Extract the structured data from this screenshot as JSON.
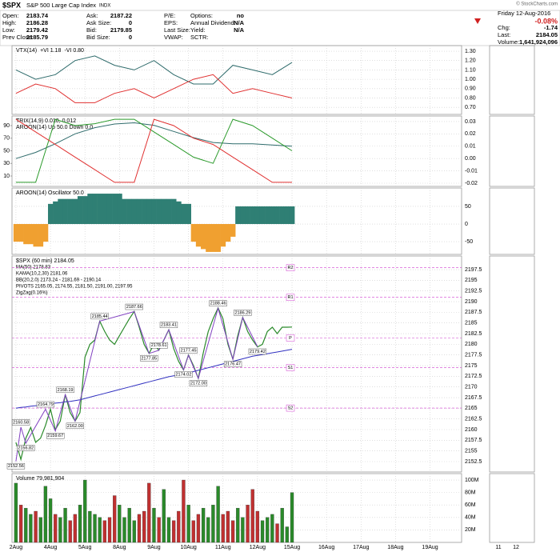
{
  "header": {
    "symbol": "$SPX",
    "name": "S&P 500 Large Cap Index",
    "exchange": "INDX",
    "credit": "© StockCharts.com",
    "quote": [
      [
        [
          "Open:",
          "2183.74"
        ],
        [
          "High:",
          "2186.28"
        ],
        [
          "Low:",
          "2179.42"
        ],
        [
          "Prev Close:",
          "2185.79"
        ]
      ],
      [
        [
          "Ask:",
          "2187.22"
        ],
        [
          "Ask Size:",
          "0"
        ],
        [
          "Bid:",
          "2179.85"
        ],
        [
          "Bid Size:",
          "0"
        ]
      ],
      [
        [
          "P/E:",
          ""
        ],
        [
          "EPS:",
          ""
        ],
        [
          "Last Size:",
          ""
        ],
        [
          "VWAP:",
          ""
        ]
      ],
      [
        [
          "Options:",
          "no"
        ],
        [
          "Annual Dividend:",
          "N/A"
        ],
        [
          "Yield:",
          "N/A"
        ],
        [
          "SCTR:",
          ""
        ]
      ]
    ],
    "date": "Friday 12-Aug-2016",
    "change_pct": "-0.08%",
    "summary": [
      [
        "Chg:",
        "-1.74"
      ],
      [
        "Last:",
        "2184.05"
      ],
      [
        "Volume:",
        "1,641,924,096"
      ]
    ]
  },
  "mini_xticks": [
    "11",
    "12"
  ],
  "chart_data": [
    {
      "type": "line",
      "title": "VTX(14)",
      "ylim": [
        0.625,
        1.36
      ],
      "yticks": [
        {
          "value": 0.7,
          "label": "0.70"
        },
        {
          "value": 0.8,
          "label": "0.80"
        },
        {
          "value": 0.9,
          "label": "0.90"
        },
        {
          "value": 1.0,
          "label": "1.00"
        },
        {
          "value": 1.1,
          "label": "1.10"
        },
        {
          "value": 1.2,
          "label": "1.20"
        },
        {
          "value": 1.3,
          "label": "1.30"
        }
      ],
      "series": [
        {
          "name": "+VI 1.18",
          "color": "#2e6b6b",
          "x": [
            0,
            4,
            8,
            12,
            16,
            20,
            24,
            28,
            32,
            36,
            40,
            44,
            48,
            52,
            56
          ],
          "values": [
            1.1,
            1.0,
            1.05,
            1.2,
            1.25,
            1.15,
            1.1,
            1.2,
            1.05,
            0.95,
            0.95,
            1.15,
            1.1,
            1.05,
            1.18
          ]
        },
        {
          "name": "-VI 0.80",
          "color": "#e03030",
          "x": [
            0,
            4,
            8,
            12,
            16,
            20,
            24,
            28,
            32,
            36,
            40,
            44,
            48,
            52,
            56
          ],
          "values": [
            0.85,
            0.95,
            0.9,
            0.75,
            0.75,
            0.85,
            0.9,
            0.8,
            0.9,
            1.0,
            1.05,
            0.85,
            0.9,
            0.85,
            0.8
          ]
        }
      ]
    },
    {
      "type": "line",
      "title": "TRIX(14,9) 0.010, 0.012",
      "title2": "AROON(14) Up 50.0 Down 0.0",
      "ylim": [
        -6.5,
        105.2
      ],
      "yticks": [
        10,
        30,
        50,
        70,
        90
      ],
      "y2lim": [
        -0.0226,
        0.0345
      ],
      "y2ticks": [
        {
          "value": -0.02,
          "label": "-0.02"
        },
        {
          "value": -0.01,
          "label": "-0.01"
        },
        {
          "value": 0,
          "label": "0.00"
        },
        {
          "value": 0.01,
          "label": "0.01"
        },
        {
          "value": 0.02,
          "label": "0.02"
        },
        {
          "value": 0.03,
          "label": "0.03"
        }
      ],
      "series": [
        {
          "color": "#2e6b6b",
          "axis": "y2",
          "x": [
            0,
            4,
            8,
            12,
            16,
            20,
            24,
            28,
            32,
            36,
            40,
            44,
            48,
            52,
            56
          ],
          "values": [
            0.0,
            0.005,
            0.012,
            0.02,
            0.025,
            0.028,
            0.029,
            0.027,
            0.022,
            0.017,
            0.013,
            0.012,
            0.012,
            0.011,
            0.01
          ]
        },
        {
          "color": "#2a9a2a",
          "x": [
            0,
            4,
            8,
            12,
            16,
            20,
            24,
            28,
            32,
            36,
            40,
            44,
            48,
            52,
            56
          ],
          "values": [
            0,
            0,
            100,
            90,
            93,
            100,
            100,
            80,
            60,
            40,
            30,
            100,
            90,
            70,
            50
          ]
        },
        {
          "color": "#e03030",
          "x": [
            0,
            4,
            8,
            12,
            16,
            20,
            24,
            28,
            32,
            36,
            40,
            44,
            48,
            52,
            56
          ],
          "values": [
            100,
            80,
            60,
            40,
            20,
            0,
            0,
            100,
            90,
            70,
            60,
            40,
            20,
            0,
            0
          ]
        }
      ]
    },
    {
      "type": "area",
      "title": "AROON(14) Oscillator 50.0",
      "ylim": [
        -86,
        102
      ],
      "yticks": [
        -50,
        0,
        50
      ],
      "pos_color": "#2f7f74",
      "neg_color": "#f0a030",
      "values": [
        -50,
        -50,
        -57,
        -57,
        -64,
        -64,
        -50,
        57,
        64,
        71,
        71,
        71,
        71,
        79,
        79,
        86,
        86,
        86,
        86,
        86,
        86,
        86,
        71,
        71,
        71,
        71,
        71,
        71,
        71,
        71,
        71,
        71,
        71,
        64,
        57,
        57,
        -50,
        -64,
        -71,
        -79,
        -79,
        -79,
        -64,
        -50,
        -36,
        50,
        50,
        50,
        50,
        50,
        50,
        50,
        50,
        50,
        50,
        50,
        50
      ]
    },
    {
      "type": "price",
      "title": "$SPX (60 min) 2184.05",
      "legend": [
        {
          "text": "MA(50) 2178.83",
          "color": "#3030c0"
        },
        {
          "text": "KAMA(10,2,30) 2181.06",
          "color": "#c03030"
        },
        {
          "text": "BB(20,2.0) 2173.24 - 2181.69 - 2190.14",
          "color": "#888888"
        },
        {
          "text": "PIVOTS 2165.05, 2174.55, 2181.50, 2191.00, 2197.95",
          "color": "#d040d0"
        },
        {
          "text": "ZigZag(0.16%)",
          "color": "#8040c0"
        }
      ],
      "ylim": [
        2150.06,
        2200.7
      ],
      "yticks": [
        2152.5,
        2155,
        2157.5,
        2160,
        2162.5,
        2165,
        2167.5,
        2170,
        2172.5,
        2175,
        2177.5,
        2180,
        2182.5,
        2185,
        2187.5,
        2190,
        2192.5,
        2195,
        2197.5
      ],
      "series": [
        {
          "color": "#2a8a2a",
          "values": [
            2157,
            2153,
            2158,
            2160.5,
            2157,
            2158,
            2161,
            2164.8,
            2160,
            2162,
            2168.2,
            2164,
            2162,
            2164,
            2177,
            2180,
            2181,
            2185.4,
            2183,
            2181,
            2180,
            2182,
            2184,
            2186,
            2187.7,
            2184,
            2180,
            2177.9,
            2180,
            2178.6,
            2181,
            2183.4,
            2179,
            2176,
            2174,
            2177.5,
            2175,
            2172,
            2178,
            2183,
            2186,
            2188.5,
            2186,
            2180,
            2176.5,
            2182,
            2186.3,
            2183,
            2181,
            2179.4,
            2180,
            2183,
            2184,
            2182.5,
            2184,
            2184,
            2184.05
          ]
        },
        {
          "color": "#3030c0",
          "values": [
            2165,
            2165.2,
            2165.3,
            2165.5,
            2165.6,
            2165.8,
            2165.9,
            2166,
            2166.2,
            2166.3,
            2166.5,
            2166.6,
            2166.8,
            2167,
            2167.3,
            2167.6,
            2167.9,
            2168.2,
            2168.5,
            2168.8,
            2169.1,
            2169.4,
            2169.7,
            2170,
            2170.3,
            2170.6,
            2170.9,
            2171.2,
            2171.5,
            2171.8,
            2172.1,
            2172.4,
            2172.6,
            2172.8,
            2173,
            2173.3,
            2173.6,
            2173.9,
            2174.2,
            2174.5,
            2174.8,
            2175.1,
            2175.4,
            2175.7,
            2176,
            2176.3,
            2176.6,
            2176.9,
            2177.2,
            2177.4,
            2177.6,
            2177.8,
            2178,
            2178.2,
            2178.4,
            2178.6,
            2178.83
          ]
        }
      ],
      "pivots": {
        "values": [
          2165.05,
          2174.55,
          2181.5,
          2191,
          2197.95
        ],
        "labels": [
          "S2",
          "S1",
          "P",
          "R1",
          "R2"
        ],
        "color": "#d040d0"
      },
      "zigzag": {
        "color": "#8040c0",
        "x": [
          0,
          1,
          2,
          6,
          8,
          10,
          12,
          17,
          24,
          27,
          29,
          31,
          34,
          35,
          37,
          41,
          44,
          46,
          49
        ],
        "values": [
          2152.56,
          2160.58,
          2156.82,
          2164.79,
          2159.67,
          2168.19,
          2162,
          2185.44,
          2187.66,
          2177.85,
          2178.61,
          2183.41,
          2174.02,
          2177.45,
          2172,
          2188.46,
          2176.47,
          2186.29,
          2179.42
        ],
        "value_labels": [
          "2152.56",
          "2160.58",
          "2156.82",
          "2164.79",
          "2159.67",
          "2168.19",
          "2162.00",
          "2185.44",
          "2187.66",
          "2177.85",
          "2178.61",
          "2183.41",
          "2174.02",
          "2177.45",
          "2172.00",
          "2188.46",
          "2176.47",
          "2186.29",
          "2179.42"
        ]
      }
    },
    {
      "type": "bar",
      "title": "Volume 79,981,904",
      "ylim": [
        0,
        110300000
      ],
      "up_color": "#2a8a2a",
      "down_color": "#c03030",
      "yticks": [
        {
          "value": 20000000,
          "label": "20M"
        },
        {
          "value": 40000000,
          "label": "40M"
        },
        {
          "value": 60000000,
          "label": "60M"
        },
        {
          "value": 80000000,
          "label": "80M"
        },
        {
          "value": 100000000,
          "label": "100M"
        }
      ],
      "xlim": [
        -0.8,
        90.4
      ],
      "xticks": [
        {
          "value": 0,
          "label": "2Aug"
        },
        {
          "value": 7,
          "label": "4Aug"
        },
        {
          "value": 14,
          "label": "5Aug"
        },
        {
          "value": 21,
          "label": "8Aug"
        },
        {
          "value": 28,
          "label": "9Aug"
        },
        {
          "value": 35,
          "label": "10Aug"
        },
        {
          "value": 42,
          "label": "11Aug"
        },
        {
          "value": 49,
          "label": "12Aug"
        },
        {
          "value": 56,
          "label": "15Aug"
        },
        {
          "value": 63,
          "label": "16Aug"
        },
        {
          "value": 70,
          "label": "17Aug"
        },
        {
          "value": 77,
          "label": "18Aug"
        },
        {
          "value": 84,
          "label": "19Aug"
        }
      ],
      "values": [
        95000000,
        60000000,
        55000000,
        45000000,
        50000000,
        40000000,
        90000000,
        70000000,
        45000000,
        40000000,
        55000000,
        35000000,
        45000000,
        60000000,
        100000000,
        50000000,
        45000000,
        40000000,
        35000000,
        40000000,
        75000000,
        60000000,
        40000000,
        55000000,
        35000000,
        45000000,
        50000000,
        95000000,
        55000000,
        40000000,
        85000000,
        40000000,
        35000000,
        50000000,
        100000000,
        60000000,
        35000000,
        45000000,
        55000000,
        40000000,
        60000000,
        90000000,
        45000000,
        50000000,
        35000000,
        55000000,
        40000000,
        60000000,
        85000000,
        50000000,
        35000000,
        40000000,
        45000000,
        30000000,
        55000000,
        25000000,
        80000000
      ]
    }
  ]
}
